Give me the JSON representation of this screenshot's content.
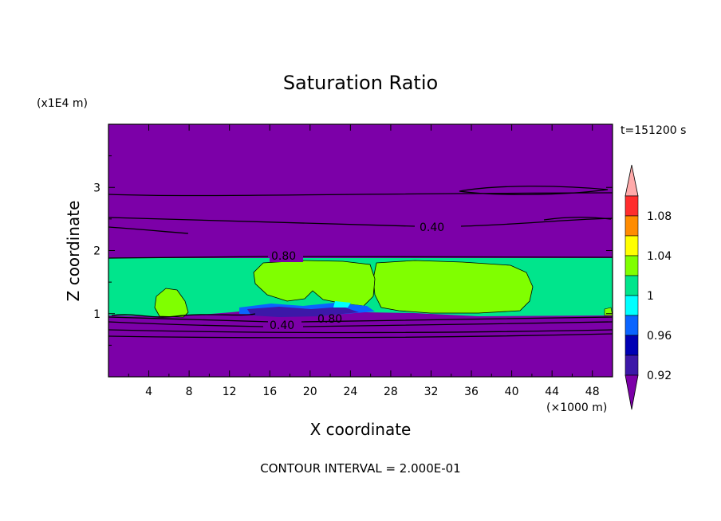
{
  "chart_data": {
    "type": "heatmap",
    "title": "Saturation Ratio",
    "xlabel": "X coordinate",
    "ylabel": "Z coordinate",
    "x_unit": "(×1000 m)",
    "y_unit": "(x1E4 m)",
    "time_label": "t=151200 s",
    "footer": "CONTOUR INTERVAL = 2.000E-01",
    "xlim": [
      0,
      50
    ],
    "ylim": [
      0,
      4
    ],
    "x_ticks": [
      "4",
      "8",
      "12",
      "16",
      "20",
      "24",
      "28",
      "32",
      "36",
      "40",
      "44",
      "48"
    ],
    "y_ticks": [
      "1",
      "2",
      "3"
    ],
    "contour_labels": [
      "0.40",
      "0.80",
      "0.40",
      "0.80"
    ],
    "colorbar": {
      "labels": [
        "1.08",
        "1.04",
        "1",
        "0.96",
        "0.92"
      ],
      "colors": [
        "#ff2d2d",
        "#ff8c00",
        "#ffff00",
        "#80ff00",
        "#00e58c",
        "#00ffff",
        "#0a64ff",
        "#0000b4",
        "#3c18a8"
      ],
      "over_color": "#ffaaaa",
      "under_color": "#7c00a8"
    },
    "colors": {
      "background_field": "#7c00a8",
      "band_main": "#00e58c",
      "cloud_region": "#80ff00"
    }
  }
}
